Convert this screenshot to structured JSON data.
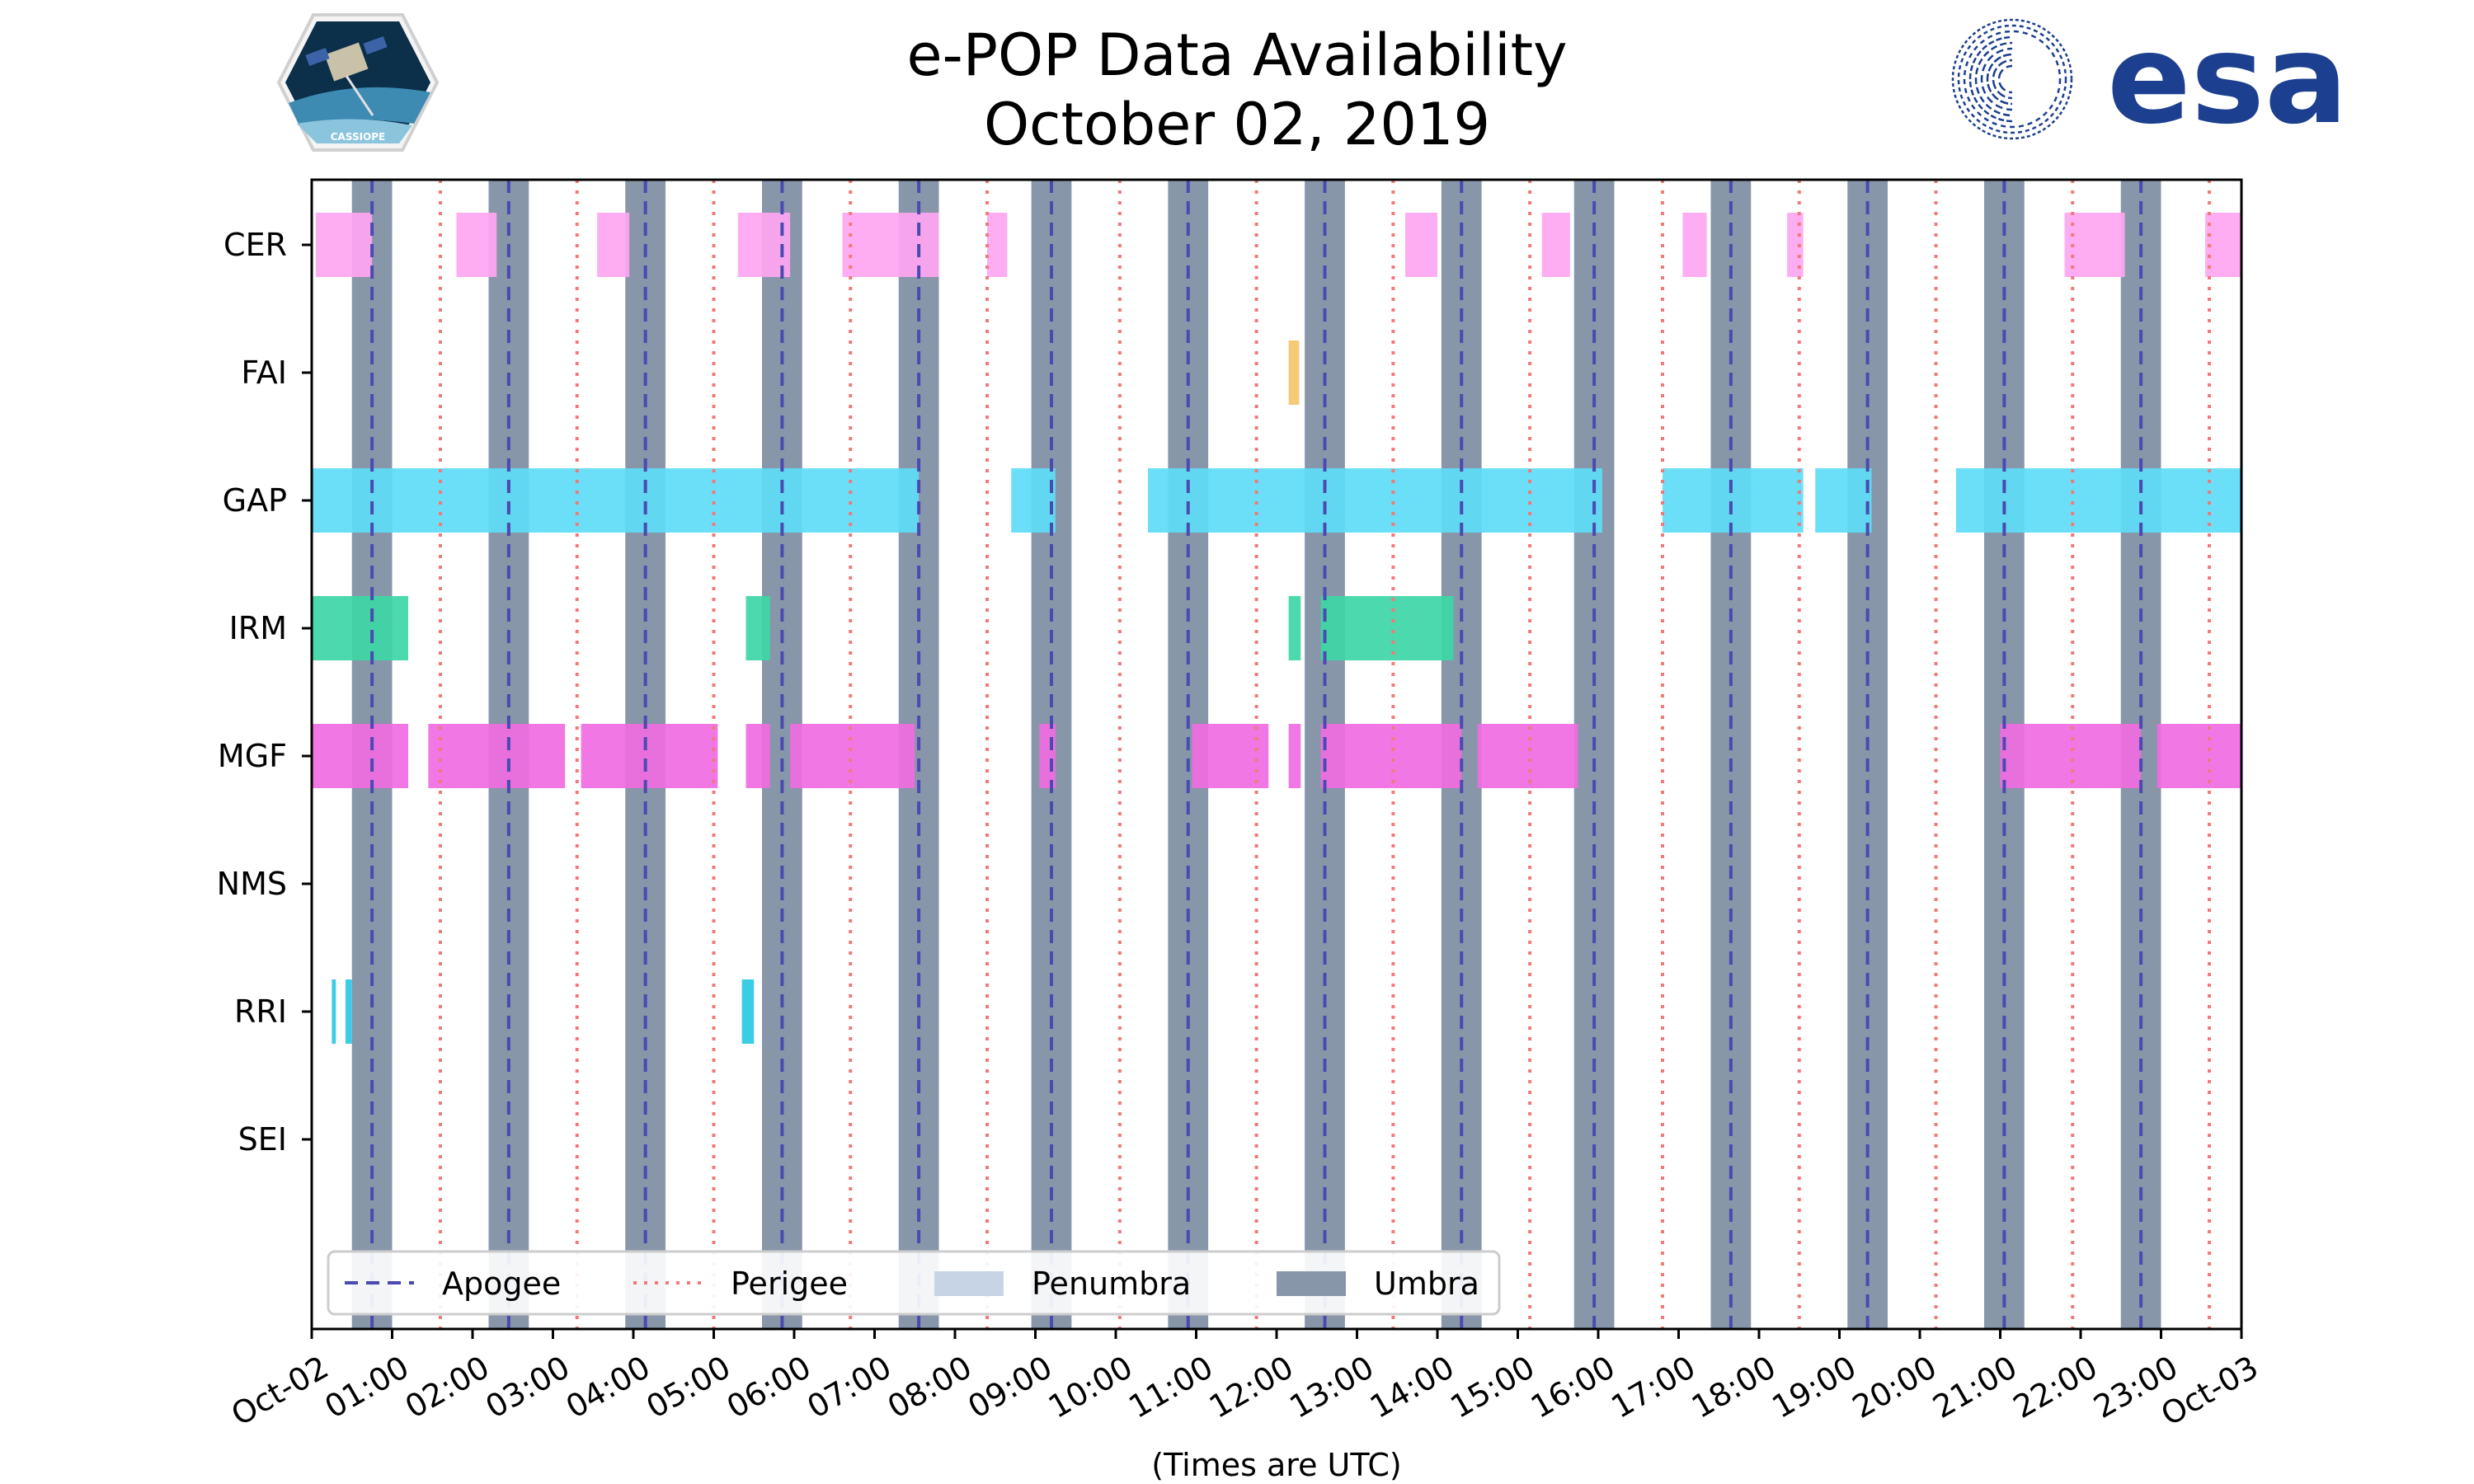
{
  "chart_data": {
    "type": "timeline",
    "title": "e-POP Data Availability",
    "subtitle": "October 02, 2019",
    "xlabel": "(Times are UTC)",
    "xlim": [
      0,
      24
    ],
    "x_ticks": [
      "Oct-02",
      "01:00",
      "02:00",
      "03:00",
      "04:00",
      "05:00",
      "06:00",
      "07:00",
      "08:00",
      "09:00",
      "10:00",
      "11:00",
      "12:00",
      "13:00",
      "14:00",
      "15:00",
      "16:00",
      "17:00",
      "18:00",
      "19:00",
      "20:00",
      "21:00",
      "22:00",
      "23:00",
      "Oct-03"
    ],
    "rows": [
      "CER",
      "FAI",
      "GAP",
      "IRM",
      "MGF",
      "NMS",
      "RRI",
      "SEI"
    ],
    "colors": {
      "CER": "#ffa6f2",
      "FAI": "#f5c46a",
      "GAP": "#5edcf7",
      "IRM": "#3dd6a6",
      "MGF": "#f06ce2",
      "RRI": "#2bc8e4",
      "umbra": "#8896aa",
      "penumbra": "#c6d4e6",
      "apogee": "#4a4ab0",
      "perigee": "#f07a7a"
    },
    "umbra": [
      [
        0.5,
        1.0
      ],
      [
        2.2,
        2.7
      ],
      [
        3.9,
        4.4
      ],
      [
        5.6,
        6.1
      ],
      [
        7.3,
        7.8
      ],
      [
        8.95,
        9.45
      ],
      [
        10.65,
        11.15
      ],
      [
        12.35,
        12.85
      ],
      [
        14.05,
        14.55
      ],
      [
        15.7,
        16.2
      ],
      [
        17.4,
        17.9
      ],
      [
        19.1,
        19.6
      ],
      [
        20.8,
        21.3
      ],
      [
        22.5,
        23.0
      ]
    ],
    "apogee": [
      0.75,
      2.45,
      4.15,
      5.85,
      7.55,
      9.2,
      10.9,
      12.6,
      14.3,
      15.95,
      17.65,
      19.35,
      21.05,
      22.75
    ],
    "perigee": [
      1.6,
      3.3,
      5.0,
      6.7,
      8.4,
      10.05,
      11.75,
      13.45,
      15.15,
      16.8,
      18.5,
      20.2,
      21.9,
      23.6
    ],
    "series": [
      {
        "name": "CER",
        "intervals": [
          [
            0.05,
            0.75
          ],
          [
            1.8,
            2.3
          ],
          [
            3.55,
            3.95
          ],
          [
            5.3,
            5.95
          ],
          [
            6.6,
            7.8
          ],
          [
            8.4,
            8.65
          ],
          [
            13.6,
            14.0
          ],
          [
            15.3,
            15.65
          ],
          [
            17.05,
            17.35
          ],
          [
            18.35,
            18.55
          ],
          [
            21.8,
            22.55
          ],
          [
            23.55,
            24.0
          ]
        ]
      },
      {
        "name": "FAI",
        "intervals": [
          [
            12.15,
            12.28
          ]
        ]
      },
      {
        "name": "GAP",
        "intervals": [
          [
            0.0,
            7.55
          ],
          [
            8.7,
            9.25
          ],
          [
            10.4,
            16.05
          ],
          [
            16.8,
            18.55
          ],
          [
            18.7,
            19.4
          ],
          [
            20.45,
            24.0
          ]
        ]
      },
      {
        "name": "IRM",
        "intervals": [
          [
            0.0,
            1.2
          ],
          [
            5.4,
            5.7
          ],
          [
            12.15,
            12.3
          ],
          [
            12.55,
            14.2
          ]
        ]
      },
      {
        "name": "MGF",
        "intervals": [
          [
            0.0,
            1.2
          ],
          [
            1.45,
            3.15
          ],
          [
            3.35,
            5.05
          ],
          [
            5.4,
            5.7
          ],
          [
            5.95,
            7.5
          ],
          [
            9.05,
            9.25
          ],
          [
            10.95,
            11.9
          ],
          [
            12.15,
            12.3
          ],
          [
            12.55,
            14.3
          ],
          [
            14.5,
            15.75
          ],
          [
            21.0,
            22.75
          ],
          [
            22.95,
            24.0
          ]
        ]
      },
      {
        "name": "NMS",
        "intervals": []
      },
      {
        "name": "RRI",
        "intervals": [
          [
            0.25,
            0.3
          ],
          [
            0.42,
            0.5
          ],
          [
            5.35,
            5.5
          ]
        ]
      },
      {
        "name": "SEI",
        "intervals": []
      }
    ],
    "legend": {
      "position": "lower-left",
      "entries": [
        {
          "label": "Apogee",
          "style": "dashed"
        },
        {
          "label": "Perigee",
          "style": "dotted"
        },
        {
          "label": "Penumbra",
          "style": "patch-light"
        },
        {
          "label": "Umbra",
          "style": "patch-dark"
        }
      ]
    }
  },
  "logos": {
    "left": "CASSIOPE",
    "right": "esa"
  }
}
